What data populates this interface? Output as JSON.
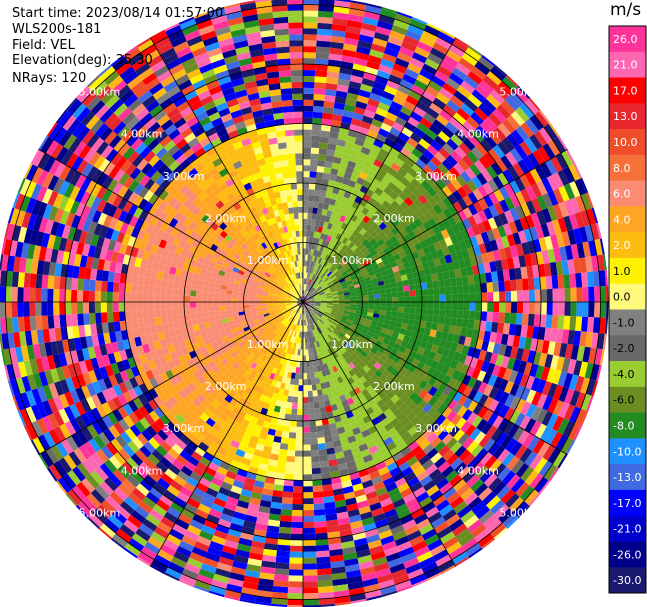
{
  "header": {
    "start_time": "Start time: 2023/08/14 01:57:00",
    "instrument": "WLS200s-181",
    "field": "Field: VEL",
    "elevation": "Elevation(deg): 35.30",
    "nrays": "NRays: 120"
  },
  "chart_data": {
    "type": "heatmap",
    "projection": "polar-ppi",
    "field": "VEL",
    "units": "m/s",
    "nrays": 120,
    "elevation_deg": 35.3,
    "range_rings_km": [
      1.0,
      2.0,
      3.0,
      4.0,
      5.0
    ],
    "ring_labels": [
      "1.00km",
      "2.00km",
      "3.00km",
      "4.00km",
      "5.00km"
    ],
    "max_range_km": 5.0,
    "colorbar": {
      "unit_label": "m/s",
      "ticks": [
        "26.0",
        "21.0",
        "17.0",
        "13.0",
        "10.0",
        "8.0",
        "6.0",
        "4.0",
        "2.0",
        "1.0",
        "0.0",
        "-1.0",
        "-2.0",
        "-4.0",
        "-6.0",
        "-8.0",
        "-10.0",
        "-13.0",
        "-17.0",
        "-21.0",
        "-26.0",
        "-30.0"
      ],
      "bins": [
        {
          "min": 26,
          "max": 30,
          "color": "#ff3399"
        },
        {
          "min": 21,
          "max": 26,
          "color": "#ff66b2"
        },
        {
          "min": 17,
          "max": 21,
          "color": "#ff0000"
        },
        {
          "min": 13,
          "max": 17,
          "color": "#e8262d"
        },
        {
          "min": 10,
          "max": 13,
          "color": "#f04e2a"
        },
        {
          "min": 8,
          "max": 10,
          "color": "#f7703a"
        },
        {
          "min": 6,
          "max": 8,
          "color": "#fb8c74"
        },
        {
          "min": 4,
          "max": 6,
          "color": "#fea623"
        },
        {
          "min": 2,
          "max": 4,
          "color": "#fdbd10"
        },
        {
          "min": 1,
          "max": 2,
          "color": "#fff200"
        },
        {
          "min": 0,
          "max": 1,
          "color": "#fffa7c"
        },
        {
          "min": -1,
          "max": 0,
          "color": "#808080"
        },
        {
          "min": -2,
          "max": -1,
          "color": "#696969"
        },
        {
          "min": -4,
          "max": -2,
          "color": "#9acd32"
        },
        {
          "min": -6,
          "max": -4,
          "color": "#6b8e23"
        },
        {
          "min": -8,
          "max": -6,
          "color": "#228b22"
        },
        {
          "min": -10,
          "max": -8,
          "color": "#1e90ff"
        },
        {
          "min": -13,
          "max": -10,
          "color": "#4169e1"
        },
        {
          "min": -17,
          "max": -13,
          "color": "#0000ff"
        },
        {
          "min": -21,
          "max": -17,
          "color": "#0000cd"
        },
        {
          "min": -26,
          "max": -21,
          "color": "#00008b"
        },
        {
          "min": -30,
          "max": -26,
          "color": "#191970"
        }
      ]
    },
    "pattern": {
      "clean_range_km": 3.0,
      "near_field_approach_bearing_deg": 270,
      "near_field_receding_bearing_deg": 90,
      "near_field_peak_speed_ms": 7
    }
  }
}
